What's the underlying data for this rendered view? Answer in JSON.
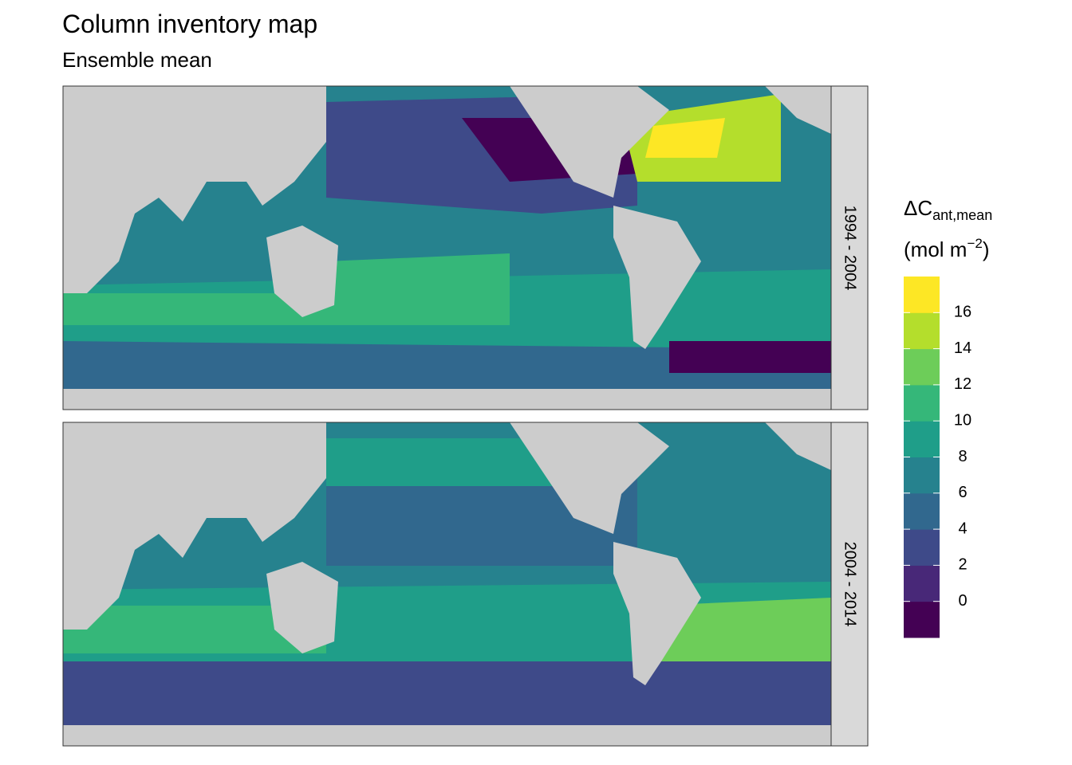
{
  "chart_data": {
    "type": "map",
    "title": "Column inventory map",
    "subtitle": "Ensemble mean",
    "facets": [
      "1994 - 2004",
      "2004 - 2014"
    ],
    "legend": {
      "title": "ΔC",
      "title_subscript": "ant,mean",
      "unit": "(mol m",
      "unit_superscript": "−2",
      "unit_close": ")",
      "breaks": [
        0,
        2,
        4,
        6,
        8,
        10,
        12,
        14,
        16
      ],
      "colors": [
        "#440154",
        "#482878",
        "#3E4A89",
        "#31688E",
        "#26828E",
        "#1F9E89",
        "#35B779",
        "#6DCD59",
        "#B4DE2C",
        "#FDE725"
      ]
    }
  }
}
